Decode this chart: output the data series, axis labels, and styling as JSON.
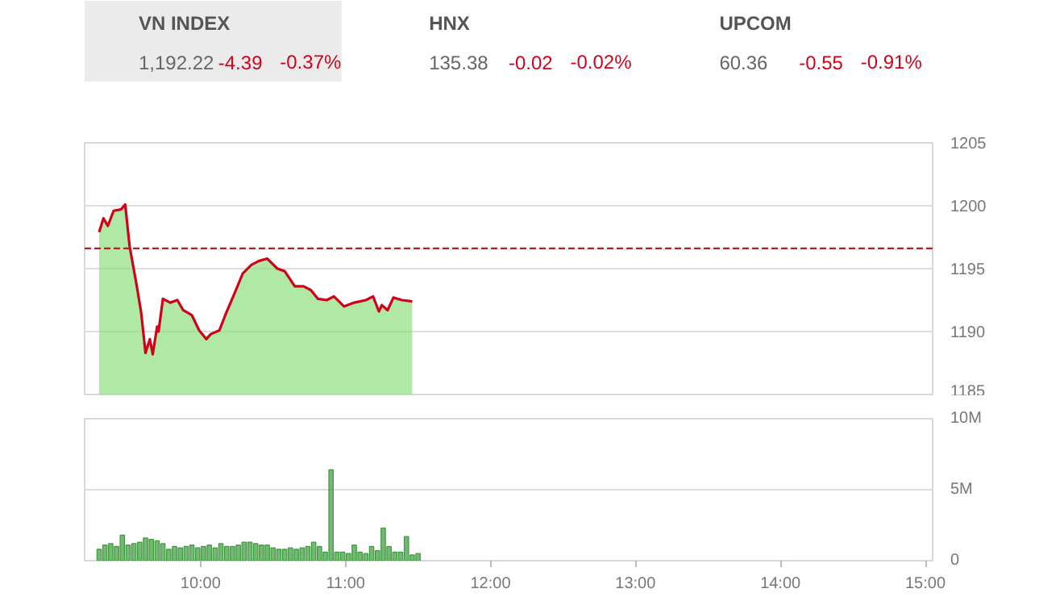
{
  "chart_data": [
    {
      "type": "other",
      "annotations": [
        "VN INDEX",
        "1,192.22",
        "-4.39",
        "-0.37%",
        "HNX",
        "135.38",
        "-0.02",
        "-0.02%",
        "UPCOM",
        "60.36",
        "-0.55",
        "-0.91%"
      ]
    },
    {
      "type": "area",
      "xlim": [
        9.2,
        15.05
      ],
      "ylim": [
        1185,
        1205
      ],
      "yticks": [
        1185,
        1190,
        1195,
        1200,
        1205
      ],
      "tick_labels": "y",
      "grid": "y",
      "x": [
        9.3,
        9.33,
        9.36,
        9.4,
        9.45,
        9.48,
        9.51,
        9.56,
        9.59,
        9.62,
        9.65,
        9.67,
        9.7,
        9.71,
        9.74,
        9.79,
        9.84,
        9.88,
        9.94,
        9.99,
        10.04,
        10.07,
        10.13,
        10.17,
        10.24,
        10.29,
        10.35,
        10.4,
        10.46,
        10.53,
        10.58,
        10.65,
        10.71,
        10.76,
        10.81,
        10.87,
        10.92,
        10.99,
        11.06,
        11.14,
        11.19,
        11.23,
        11.25,
        11.29,
        11.33,
        11.39,
        11.46
      ],
      "series": [
        {
          "type": "area",
          "color": "#8fe07f",
          "values": [
            1197.9,
            1199.0,
            1198.4,
            1199.6,
            1199.7,
            1200.1,
            1196.8,
            1193.6,
            1191.5,
            1188.3,
            1189.4,
            1188.2,
            1190.4,
            1190.0,
            1192.6,
            1192.3,
            1192.5,
            1191.7,
            1191.3,
            1190.1,
            1189.4,
            1189.8,
            1190.1,
            1191.3,
            1193.2,
            1194.6,
            1195.3,
            1195.6,
            1195.8,
            1195.0,
            1194.8,
            1193.6,
            1193.6,
            1193.3,
            1192.6,
            1192.5,
            1192.8,
            1192.0,
            1192.3,
            1192.5,
            1192.8,
            1191.6,
            1192.1,
            1191.7,
            1192.7,
            1192.5,
            1192.4
          ]
        },
        {
          "type": "line",
          "color": "#d0021b",
          "values": [
            1197.9,
            1199.0,
            1198.4,
            1199.6,
            1199.7,
            1200.1,
            1196.8,
            1193.6,
            1191.5,
            1188.3,
            1189.4,
            1188.2,
            1190.4,
            1190.0,
            1192.6,
            1192.3,
            1192.5,
            1191.7,
            1191.3,
            1190.1,
            1189.4,
            1189.8,
            1190.1,
            1191.3,
            1193.2,
            1194.6,
            1195.3,
            1195.6,
            1195.8,
            1195.0,
            1194.8,
            1193.6,
            1193.6,
            1193.3,
            1192.6,
            1192.5,
            1192.8,
            1192.0,
            1192.3,
            1192.5,
            1192.8,
            1191.6,
            1192.1,
            1191.7,
            1192.7,
            1192.5,
            1192.4
          ]
        }
      ],
      "ref_lines": [
        {
          "axis": "y",
          "value": 1196.61,
          "color": "#b22222",
          "line_style": "dashed"
        }
      ]
    },
    {
      "type": "bar",
      "xlim": [
        9.2,
        15.05
      ],
      "ylim": [
        0,
        10
      ],
      "yticks": [
        0,
        {
          "value": 5,
          "label": "5M"
        },
        {
          "value": 10,
          "label": "10M"
        }
      ],
      "xticks": [
        {
          "value": 10,
          "label": "10:00"
        },
        {
          "value": 11,
          "label": "11:00"
        },
        {
          "value": 12,
          "label": "12:00"
        },
        {
          "value": 13,
          "label": "13:00"
        },
        {
          "value": 14,
          "label": "14:00"
        },
        {
          "value": 15,
          "label": "15:00"
        }
      ],
      "grid": "y",
      "x": [
        9.3,
        9.34,
        9.38,
        9.42,
        9.46,
        9.5,
        9.54,
        9.58,
        9.62,
        9.66,
        9.7,
        9.74,
        9.78,
        9.82,
        9.86,
        9.9,
        9.94,
        9.98,
        10.02,
        10.06,
        10.1,
        10.14,
        10.18,
        10.22,
        10.26,
        10.3,
        10.34,
        10.38,
        10.42,
        10.46,
        10.5,
        10.54,
        10.58,
        10.62,
        10.66,
        10.7,
        10.74,
        10.78,
        10.82,
        10.86,
        10.9,
        10.94,
        10.98,
        11.02,
        11.06,
        11.1,
        11.14,
        11.18,
        11.22,
        11.26,
        11.3,
        11.34,
        11.38,
        11.42,
        11.46,
        11.5
      ],
      "series": [
        {
          "color": "#3a9a3a",
          "values": [
            0.8,
            1.1,
            1.2,
            1.0,
            1.8,
            1.1,
            1.2,
            1.3,
            1.6,
            1.5,
            1.4,
            1.2,
            0.8,
            1.0,
            0.9,
            1.0,
            1.1,
            0.9,
            1.0,
            1.1,
            0.9,
            1.2,
            1.0,
            1.0,
            1.1,
            1.3,
            1.3,
            1.2,
            1.1,
            1.1,
            0.9,
            0.8,
            0.8,
            0.9,
            0.8,
            0.9,
            1.0,
            1.3,
            1.0,
            0.6,
            6.4,
            0.6,
            0.6,
            0.5,
            1.1,
            0.6,
            0.5,
            1.0,
            0.7,
            2.3,
            1.0,
            0.6,
            0.6,
            1.7,
            0.4,
            0.5
          ]
        }
      ]
    }
  ]
}
